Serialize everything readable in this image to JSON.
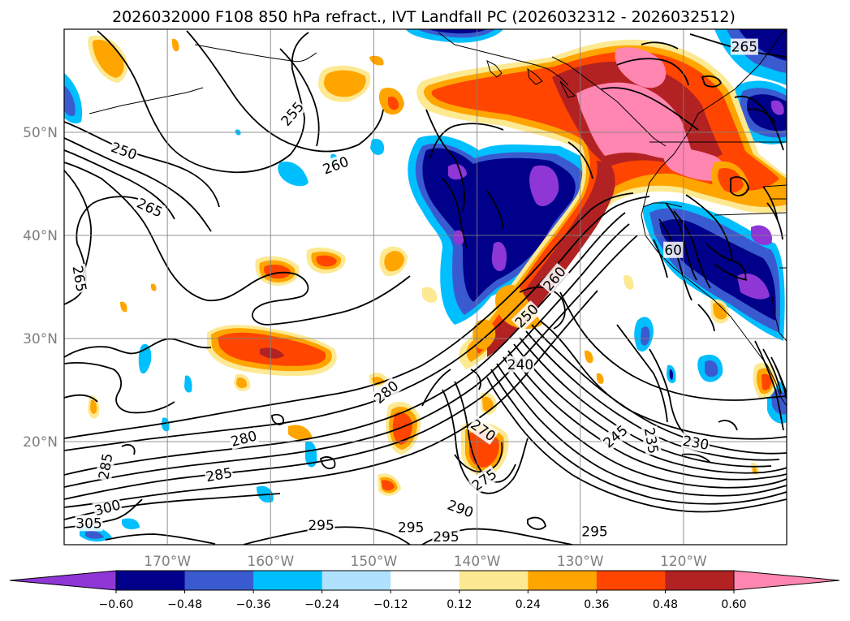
{
  "title": "2026032000 F108 850 hPa refract., IVT Landfall PC (2026032312 - 2026032512)",
  "map": {
    "lon_range": [
      -180,
      -110
    ],
    "lat_range": [
      10,
      60
    ],
    "lon_ticks": [
      {
        "lon": -170,
        "label": "170°W"
      },
      {
        "lon": -160,
        "label": "160°W"
      },
      {
        "lon": -150,
        "label": "150°W"
      },
      {
        "lon": -140,
        "label": "140°W"
      },
      {
        "lon": -130,
        "label": "130°W"
      },
      {
        "lon": -120,
        "label": "120°W"
      }
    ],
    "lat_ticks": [
      {
        "lat": 50,
        "label": "50°N"
      },
      {
        "lat": 40,
        "label": "40°N"
      },
      {
        "lat": 30,
        "label": "30°N"
      },
      {
        "lat": 20,
        "label": "20°N"
      }
    ],
    "grid": true,
    "contour_labels": [
      {
        "text": "265",
        "lon": -114.1,
        "lat": 58.3,
        "rot": 0
      },
      {
        "text": "255",
        "lon": -157.9,
        "lat": 51.8,
        "rot": -50
      },
      {
        "text": "260",
        "lon": -153.7,
        "lat": 46.8,
        "rot": -20
      },
      {
        "text": "250",
        "lon": -174.2,
        "lat": 48.2,
        "rot": 20
      },
      {
        "text": "265",
        "lon": -171.7,
        "lat": 42.7,
        "rot": 25
      },
      {
        "text": "265",
        "lon": -178.5,
        "lat": 35.8,
        "rot": 80
      },
      {
        "text": "260",
        "lon": -132.5,
        "lat": 35.8,
        "rot": -50
      },
      {
        "text": "250",
        "lon": -135.2,
        "lat": 32.2,
        "rot": -45
      },
      {
        "text": "240",
        "lon": -135.8,
        "lat": 27.5,
        "rot": 0
      },
      {
        "text": "280",
        "lon": -148.8,
        "lat": 24.8,
        "rot": -40
      },
      {
        "text": "280",
        "lon": -162.6,
        "lat": 20.3,
        "rot": -15
      },
      {
        "text": "270",
        "lon": -139.4,
        "lat": 21.1,
        "rot": 35
      },
      {
        "text": "245",
        "lon": -126.6,
        "lat": 20.5,
        "rot": -40
      },
      {
        "text": "235",
        "lon": -123.1,
        "lat": 20.1,
        "rot": 80
      },
      {
        "text": "230",
        "lon": -118.8,
        "lat": 19.9,
        "rot": 10
      },
      {
        "text": "285",
        "lon": -176.0,
        "lat": 17.6,
        "rot": -80
      },
      {
        "text": "285",
        "lon": -165.0,
        "lat": 16.8,
        "rot": -10
      },
      {
        "text": "275",
        "lon": -139.3,
        "lat": 16.3,
        "rot": -35
      },
      {
        "text": "300",
        "lon": -175.8,
        "lat": 13.6,
        "rot": -15
      },
      {
        "text": "290",
        "lon": -141.6,
        "lat": 13.5,
        "rot": 20
      },
      {
        "text": "305",
        "lon": -177.6,
        "lat": 12.1,
        "rot": 0
      },
      {
        "text": "295",
        "lon": -155.1,
        "lat": 11.9,
        "rot": 0
      },
      {
        "text": "295",
        "lon": -146.4,
        "lat": 11.7,
        "rot": 0
      },
      {
        "text": "295",
        "lon": -143.0,
        "lat": 10.8,
        "rot": 0
      },
      {
        "text": "295",
        "lon": -128.6,
        "lat": 11.3,
        "rot": 0
      },
      {
        "text": "60",
        "lon": -121.0,
        "lat": 38.6,
        "rot": 0
      }
    ]
  },
  "colorbar": {
    "colors": [
      "#8e36d6",
      "#00008b",
      "#3a5bd0",
      "#00bfff",
      "#b0e2ff",
      "#ffffff",
      "#fde992",
      "#ffa500",
      "#ff4500",
      "#b22222",
      "#ff86b0"
    ],
    "tick_labels": [
      "−0.60",
      "−0.48",
      "−0.36",
      "−0.24",
      "−0.12",
      "0.12",
      "0.24",
      "0.36",
      "0.48",
      "0.60"
    ]
  }
}
